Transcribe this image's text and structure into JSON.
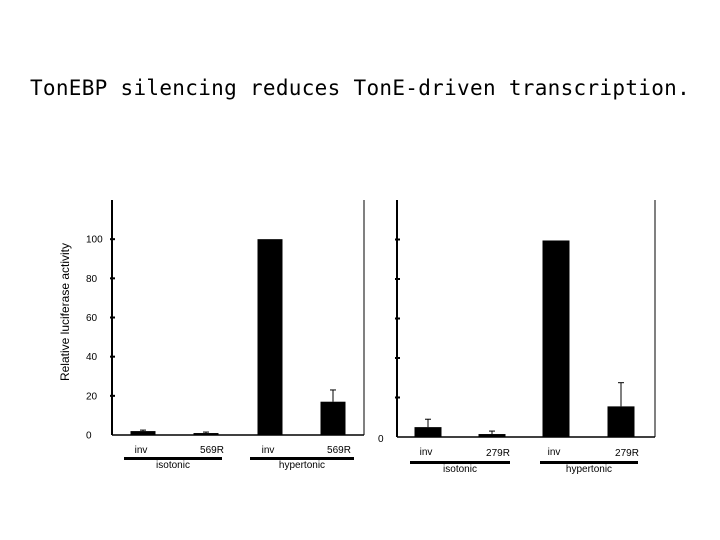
{
  "title": "TonEBP silencing reduces TonE-driven transcription.",
  "chart_data": [
    {
      "type": "bar",
      "categories": [
        "inv",
        "569R",
        "inv",
        "569R"
      ],
      "groups": [
        "isotonic",
        "hypertonic"
      ],
      "values": [
        2,
        1,
        100,
        17
      ],
      "errors": [
        0.5,
        0.5,
        0,
        6
      ],
      "ylabel": "Relative luciferase activity",
      "yticks": [
        0,
        20,
        40,
        60,
        80,
        100
      ],
      "ylim": [
        0,
        120
      ]
    },
    {
      "type": "bar",
      "categories": [
        "inv",
        "279R",
        "inv",
        "279R"
      ],
      "groups": [
        "isotonic",
        "hypertonic"
      ],
      "values": [
        5,
        1.5,
        99.5,
        15.5
      ],
      "errors": [
        4,
        1.5,
        0,
        12
      ],
      "zero_label": "0",
      "ylim": [
        0,
        120
      ]
    }
  ]
}
